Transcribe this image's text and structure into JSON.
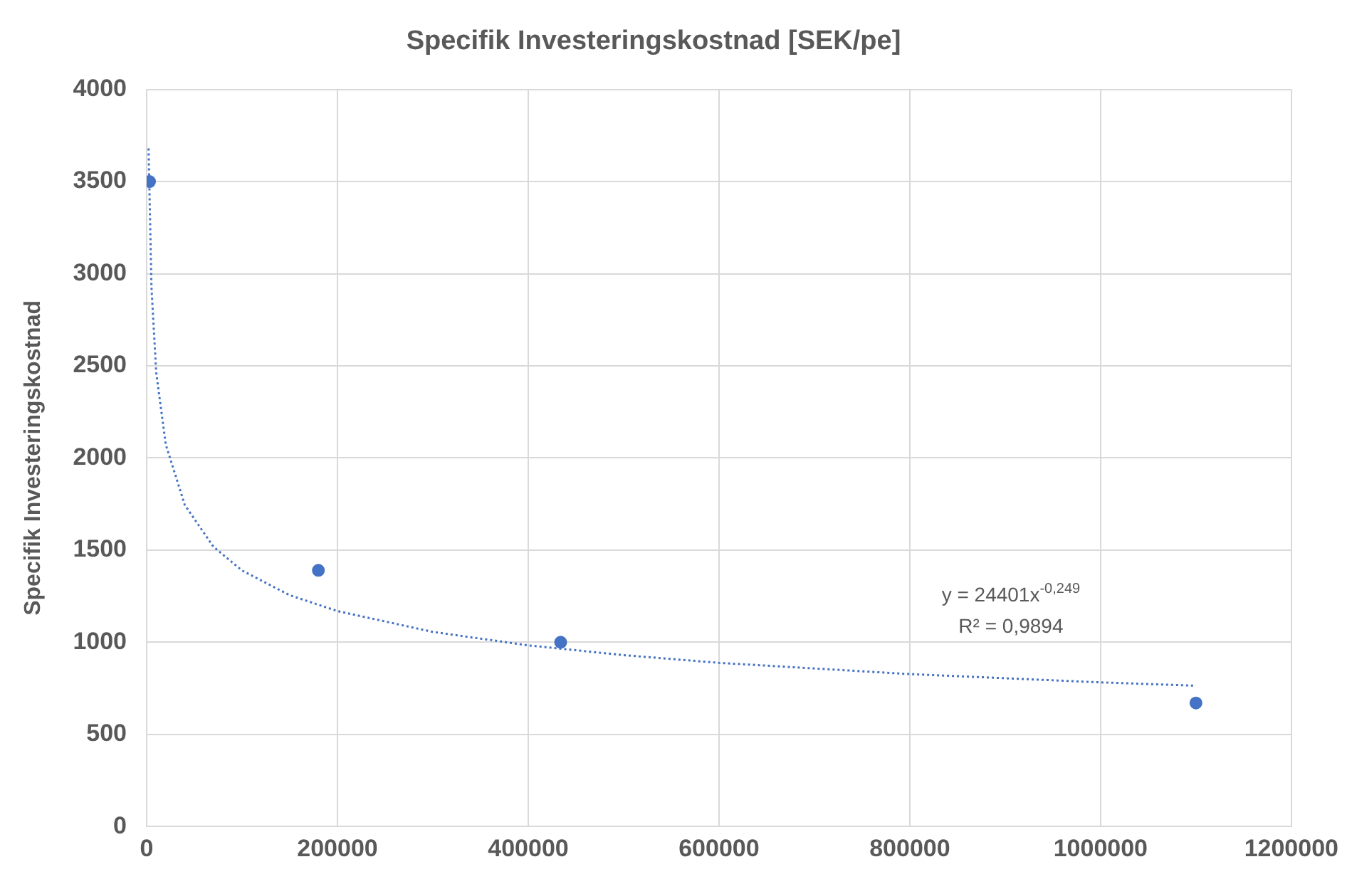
{
  "chart_data": {
    "type": "scatter",
    "title": "Specifik Investeringskostnad [SEK/pe]",
    "ylabel": "Specifik Investeringskostnad",
    "series": [
      {
        "type": "scatter",
        "color": "#4472c4",
        "x": [
          3000,
          180000,
          434000,
          1100000
        ],
        "values": [
          3500,
          1390,
          1000,
          670
        ],
        "marker": "circle"
      },
      {
        "type": "line",
        "color": "#4472c4",
        "line_style": "dotted",
        "marker": "none",
        "x": [
          2000,
          5000,
          10000,
          20000,
          40000,
          70000,
          100000,
          150000,
          200000,
          300000,
          400000,
          500000,
          600000,
          800000,
          1000000,
          1100000
        ],
        "values": [
          3680,
          2928,
          2463,
          2073,
          1744,
          1518,
          1389,
          1255,
          1169,
          1056,
          983,
          930,
          888,
          827,
          782,
          764
        ]
      }
    ],
    "xlim": [
      0,
      1200000
    ],
    "xticks": [
      0,
      200000,
      400000,
      600000,
      800000,
      1000000,
      1200000
    ],
    "ylim": [
      0,
      4000
    ],
    "yticks": [
      0,
      500,
      1000,
      1500,
      2000,
      2500,
      3000,
      3500,
      4000
    ],
    "grid": true,
    "legend": false,
    "annotations": [
      "y = 24401x$^{-0,249}$",
      "R² = 0,9894"
    ]
  }
}
